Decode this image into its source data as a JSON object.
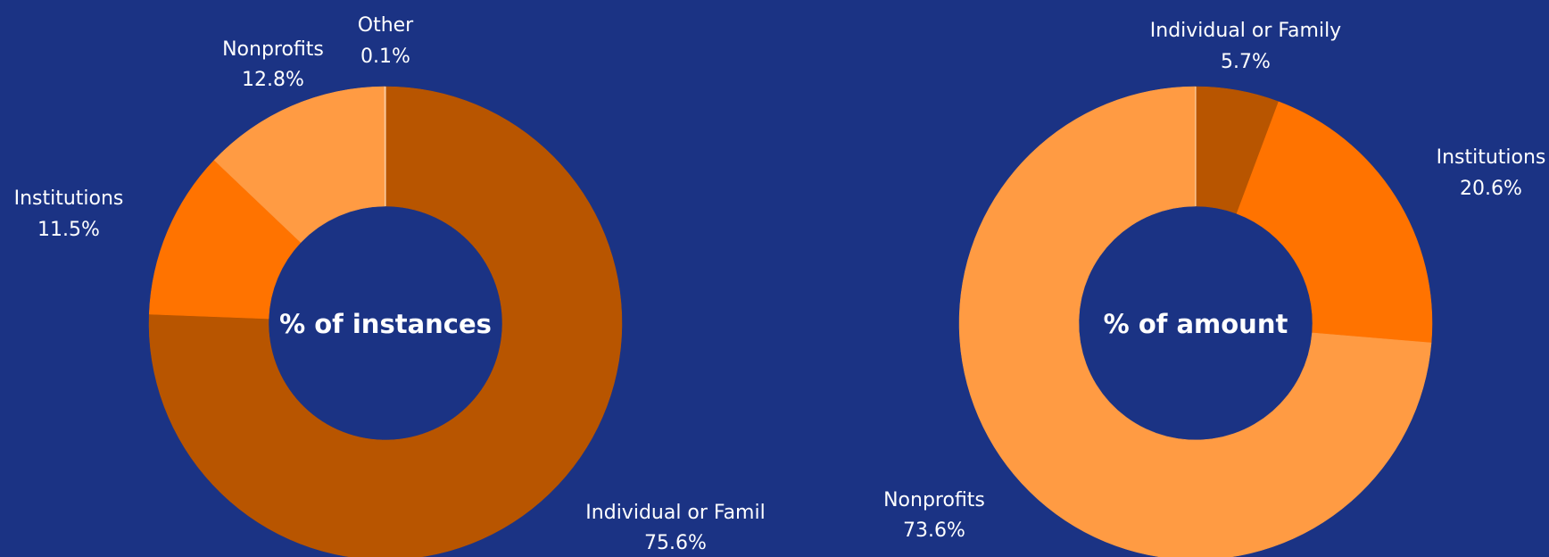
{
  "chart_data": [
    {
      "type": "pie",
      "title": "% of instances",
      "categories": [
        "Individual or Famil",
        "Institutions",
        "Nonprofits",
        "Other"
      ],
      "values": [
        75.6,
        11.5,
        12.8,
        0.1
      ],
      "value_labels": [
        "75.6%",
        "11.5%",
        "12.8%",
        "0.1%"
      ],
      "colors": [
        "#b85500",
        "#ff7300",
        "#ff9b43",
        "#ffb070"
      ],
      "donut": true,
      "start": "top",
      "direction": "clockwise",
      "legend": "none"
    },
    {
      "type": "pie",
      "title": "% of amount",
      "categories": [
        "Individual or Family",
        "Institutions",
        "Nonprofits"
      ],
      "values": [
        5.7,
        20.6,
        73.6
      ],
      "value_labels": [
        "5.7%",
        "20.6%",
        "73.6%"
      ],
      "colors": [
        "#b85500",
        "#ff7300",
        "#ff9b43"
      ],
      "donut": true,
      "start": "top",
      "direction": "clockwise",
      "legend": "none"
    }
  ],
  "colors": {
    "background": "#1b3384",
    "text": "#ffffff"
  }
}
